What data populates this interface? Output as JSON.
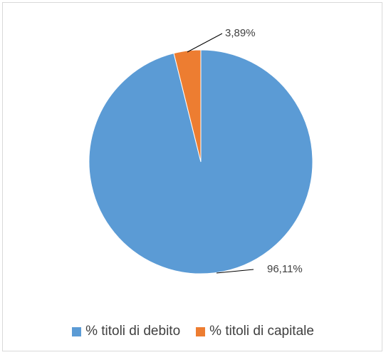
{
  "chart_data": {
    "type": "pie",
    "title": "",
    "series": [
      {
        "name": "% titoli di debito",
        "value": 96.11,
        "label": "96,11%",
        "color": "#5b9bd5"
      },
      {
        "name": "% titoli di capitale",
        "value": 3.89,
        "label": "3,89%",
        "color": "#ed7d31"
      }
    ],
    "legend_position": "bottom"
  }
}
